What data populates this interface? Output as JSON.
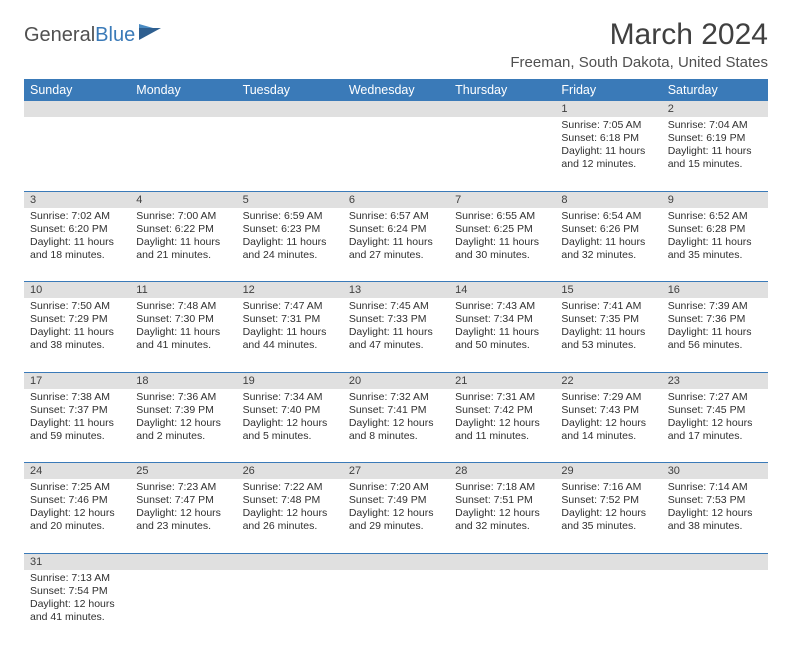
{
  "logo": {
    "word1": "General",
    "word2": "Blue"
  },
  "title": "March 2024",
  "location": "Freeman, South Dakota, United States",
  "colors": {
    "header_bg": "#3a7ab8",
    "header_fg": "#ffffff",
    "daynum_bg": "#e0e0e0",
    "rule": "#3a7ab8",
    "text": "#303030"
  },
  "weekdays": [
    "Sunday",
    "Monday",
    "Tuesday",
    "Wednesday",
    "Thursday",
    "Friday",
    "Saturday"
  ],
  "weeks": [
    [
      null,
      null,
      null,
      null,
      null,
      {
        "n": "1",
        "sr": "Sunrise: 7:05 AM",
        "ss": "Sunset: 6:18 PM",
        "dl": "Daylight: 11 hours and 12 minutes."
      },
      {
        "n": "2",
        "sr": "Sunrise: 7:04 AM",
        "ss": "Sunset: 6:19 PM",
        "dl": "Daylight: 11 hours and 15 minutes."
      }
    ],
    [
      {
        "n": "3",
        "sr": "Sunrise: 7:02 AM",
        "ss": "Sunset: 6:20 PM",
        "dl": "Daylight: 11 hours and 18 minutes."
      },
      {
        "n": "4",
        "sr": "Sunrise: 7:00 AM",
        "ss": "Sunset: 6:22 PM",
        "dl": "Daylight: 11 hours and 21 minutes."
      },
      {
        "n": "5",
        "sr": "Sunrise: 6:59 AM",
        "ss": "Sunset: 6:23 PM",
        "dl": "Daylight: 11 hours and 24 minutes."
      },
      {
        "n": "6",
        "sr": "Sunrise: 6:57 AM",
        "ss": "Sunset: 6:24 PM",
        "dl": "Daylight: 11 hours and 27 minutes."
      },
      {
        "n": "7",
        "sr": "Sunrise: 6:55 AM",
        "ss": "Sunset: 6:25 PM",
        "dl": "Daylight: 11 hours and 30 minutes."
      },
      {
        "n": "8",
        "sr": "Sunrise: 6:54 AM",
        "ss": "Sunset: 6:26 PM",
        "dl": "Daylight: 11 hours and 32 minutes."
      },
      {
        "n": "9",
        "sr": "Sunrise: 6:52 AM",
        "ss": "Sunset: 6:28 PM",
        "dl": "Daylight: 11 hours and 35 minutes."
      }
    ],
    [
      {
        "n": "10",
        "sr": "Sunrise: 7:50 AM",
        "ss": "Sunset: 7:29 PM",
        "dl": "Daylight: 11 hours and 38 minutes."
      },
      {
        "n": "11",
        "sr": "Sunrise: 7:48 AM",
        "ss": "Sunset: 7:30 PM",
        "dl": "Daylight: 11 hours and 41 minutes."
      },
      {
        "n": "12",
        "sr": "Sunrise: 7:47 AM",
        "ss": "Sunset: 7:31 PM",
        "dl": "Daylight: 11 hours and 44 minutes."
      },
      {
        "n": "13",
        "sr": "Sunrise: 7:45 AM",
        "ss": "Sunset: 7:33 PM",
        "dl": "Daylight: 11 hours and 47 minutes."
      },
      {
        "n": "14",
        "sr": "Sunrise: 7:43 AM",
        "ss": "Sunset: 7:34 PM",
        "dl": "Daylight: 11 hours and 50 minutes."
      },
      {
        "n": "15",
        "sr": "Sunrise: 7:41 AM",
        "ss": "Sunset: 7:35 PM",
        "dl": "Daylight: 11 hours and 53 minutes."
      },
      {
        "n": "16",
        "sr": "Sunrise: 7:39 AM",
        "ss": "Sunset: 7:36 PM",
        "dl": "Daylight: 11 hours and 56 minutes."
      }
    ],
    [
      {
        "n": "17",
        "sr": "Sunrise: 7:38 AM",
        "ss": "Sunset: 7:37 PM",
        "dl": "Daylight: 11 hours and 59 minutes."
      },
      {
        "n": "18",
        "sr": "Sunrise: 7:36 AM",
        "ss": "Sunset: 7:39 PM",
        "dl": "Daylight: 12 hours and 2 minutes."
      },
      {
        "n": "19",
        "sr": "Sunrise: 7:34 AM",
        "ss": "Sunset: 7:40 PM",
        "dl": "Daylight: 12 hours and 5 minutes."
      },
      {
        "n": "20",
        "sr": "Sunrise: 7:32 AM",
        "ss": "Sunset: 7:41 PM",
        "dl": "Daylight: 12 hours and 8 minutes."
      },
      {
        "n": "21",
        "sr": "Sunrise: 7:31 AM",
        "ss": "Sunset: 7:42 PM",
        "dl": "Daylight: 12 hours and 11 minutes."
      },
      {
        "n": "22",
        "sr": "Sunrise: 7:29 AM",
        "ss": "Sunset: 7:43 PM",
        "dl": "Daylight: 12 hours and 14 minutes."
      },
      {
        "n": "23",
        "sr": "Sunrise: 7:27 AM",
        "ss": "Sunset: 7:45 PM",
        "dl": "Daylight: 12 hours and 17 minutes."
      }
    ],
    [
      {
        "n": "24",
        "sr": "Sunrise: 7:25 AM",
        "ss": "Sunset: 7:46 PM",
        "dl": "Daylight: 12 hours and 20 minutes."
      },
      {
        "n": "25",
        "sr": "Sunrise: 7:23 AM",
        "ss": "Sunset: 7:47 PM",
        "dl": "Daylight: 12 hours and 23 minutes."
      },
      {
        "n": "26",
        "sr": "Sunrise: 7:22 AM",
        "ss": "Sunset: 7:48 PM",
        "dl": "Daylight: 12 hours and 26 minutes."
      },
      {
        "n": "27",
        "sr": "Sunrise: 7:20 AM",
        "ss": "Sunset: 7:49 PM",
        "dl": "Daylight: 12 hours and 29 minutes."
      },
      {
        "n": "28",
        "sr": "Sunrise: 7:18 AM",
        "ss": "Sunset: 7:51 PM",
        "dl": "Daylight: 12 hours and 32 minutes."
      },
      {
        "n": "29",
        "sr": "Sunrise: 7:16 AM",
        "ss": "Sunset: 7:52 PM",
        "dl": "Daylight: 12 hours and 35 minutes."
      },
      {
        "n": "30",
        "sr": "Sunrise: 7:14 AM",
        "ss": "Sunset: 7:53 PM",
        "dl": "Daylight: 12 hours and 38 minutes."
      }
    ],
    [
      {
        "n": "31",
        "sr": "Sunrise: 7:13 AM",
        "ss": "Sunset: 7:54 PM",
        "dl": "Daylight: 12 hours and 41 minutes."
      },
      null,
      null,
      null,
      null,
      null,
      null
    ]
  ]
}
